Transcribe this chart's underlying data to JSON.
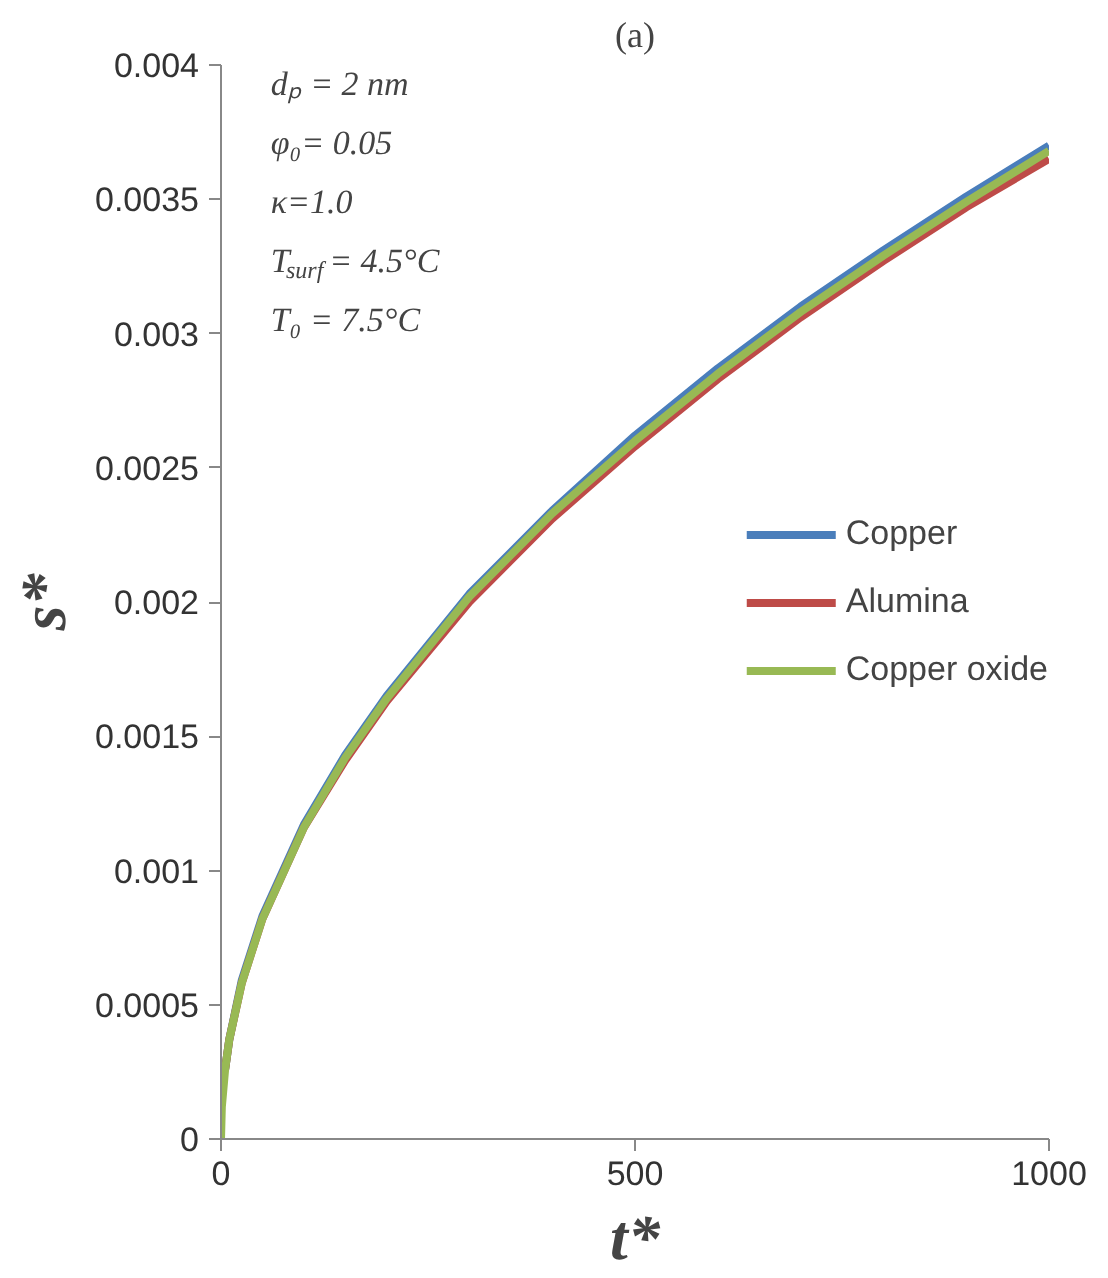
{
  "chart_data": {
    "type": "line",
    "title": "(a)",
    "xlabel": "t*",
    "ylabel": "s*",
    "x": [
      0,
      1,
      5,
      10,
      25,
      50,
      100,
      150,
      200,
      300,
      400,
      500,
      600,
      700,
      800,
      900,
      1000
    ],
    "series": [
      {
        "name": "Copper",
        "color": "#4a7ebb",
        "values": [
          null,
          null,
          0.00026,
          0.00037,
          0.00059,
          0.00083,
          0.00117,
          0.00143,
          0.00165,
          0.00203,
          0.00234,
          0.00262,
          0.00287,
          0.0031,
          0.00331,
          0.00351,
          0.0037
        ]
      },
      {
        "name": "Alumina",
        "color": "#be4b48",
        "values": [
          null,
          null,
          0.00026,
          0.00037,
          0.00058,
          0.00082,
          0.00116,
          0.00141,
          0.00163,
          0.002,
          0.00231,
          0.00258,
          0.00283,
          0.00306,
          0.00327,
          0.00347,
          0.00365
        ]
      },
      {
        "name": "Copper oxide",
        "color": "#98b954",
        "values": [
          0,
          0.00012,
          0.00026,
          0.00037,
          0.00058,
          0.00082,
          0.00116,
          0.00142,
          0.00164,
          0.00202,
          0.00233,
          0.0026,
          0.00285,
          0.00308,
          0.00329,
          0.00349,
          0.00368
        ]
      }
    ],
    "annotations": [
      "dₚ = 2 nm",
      "φ₀= 0.05",
      "κ=1.0",
      "T$_{surf}$ = 4.5°C",
      "T₀ = 7.5°C"
    ],
    "xlim": [
      0,
      1000
    ],
    "xticks": [
      0,
      500,
      1000
    ],
    "ylim": [
      0,
      0.004
    ],
    "yticks": [
      0,
      0.0005,
      0.001,
      0.0015,
      0.002,
      0.0025,
      0.003,
      0.0035,
      0.004
    ],
    "grid": false,
    "legend": "right",
    "marker": "none",
    "line_style": "solid"
  }
}
